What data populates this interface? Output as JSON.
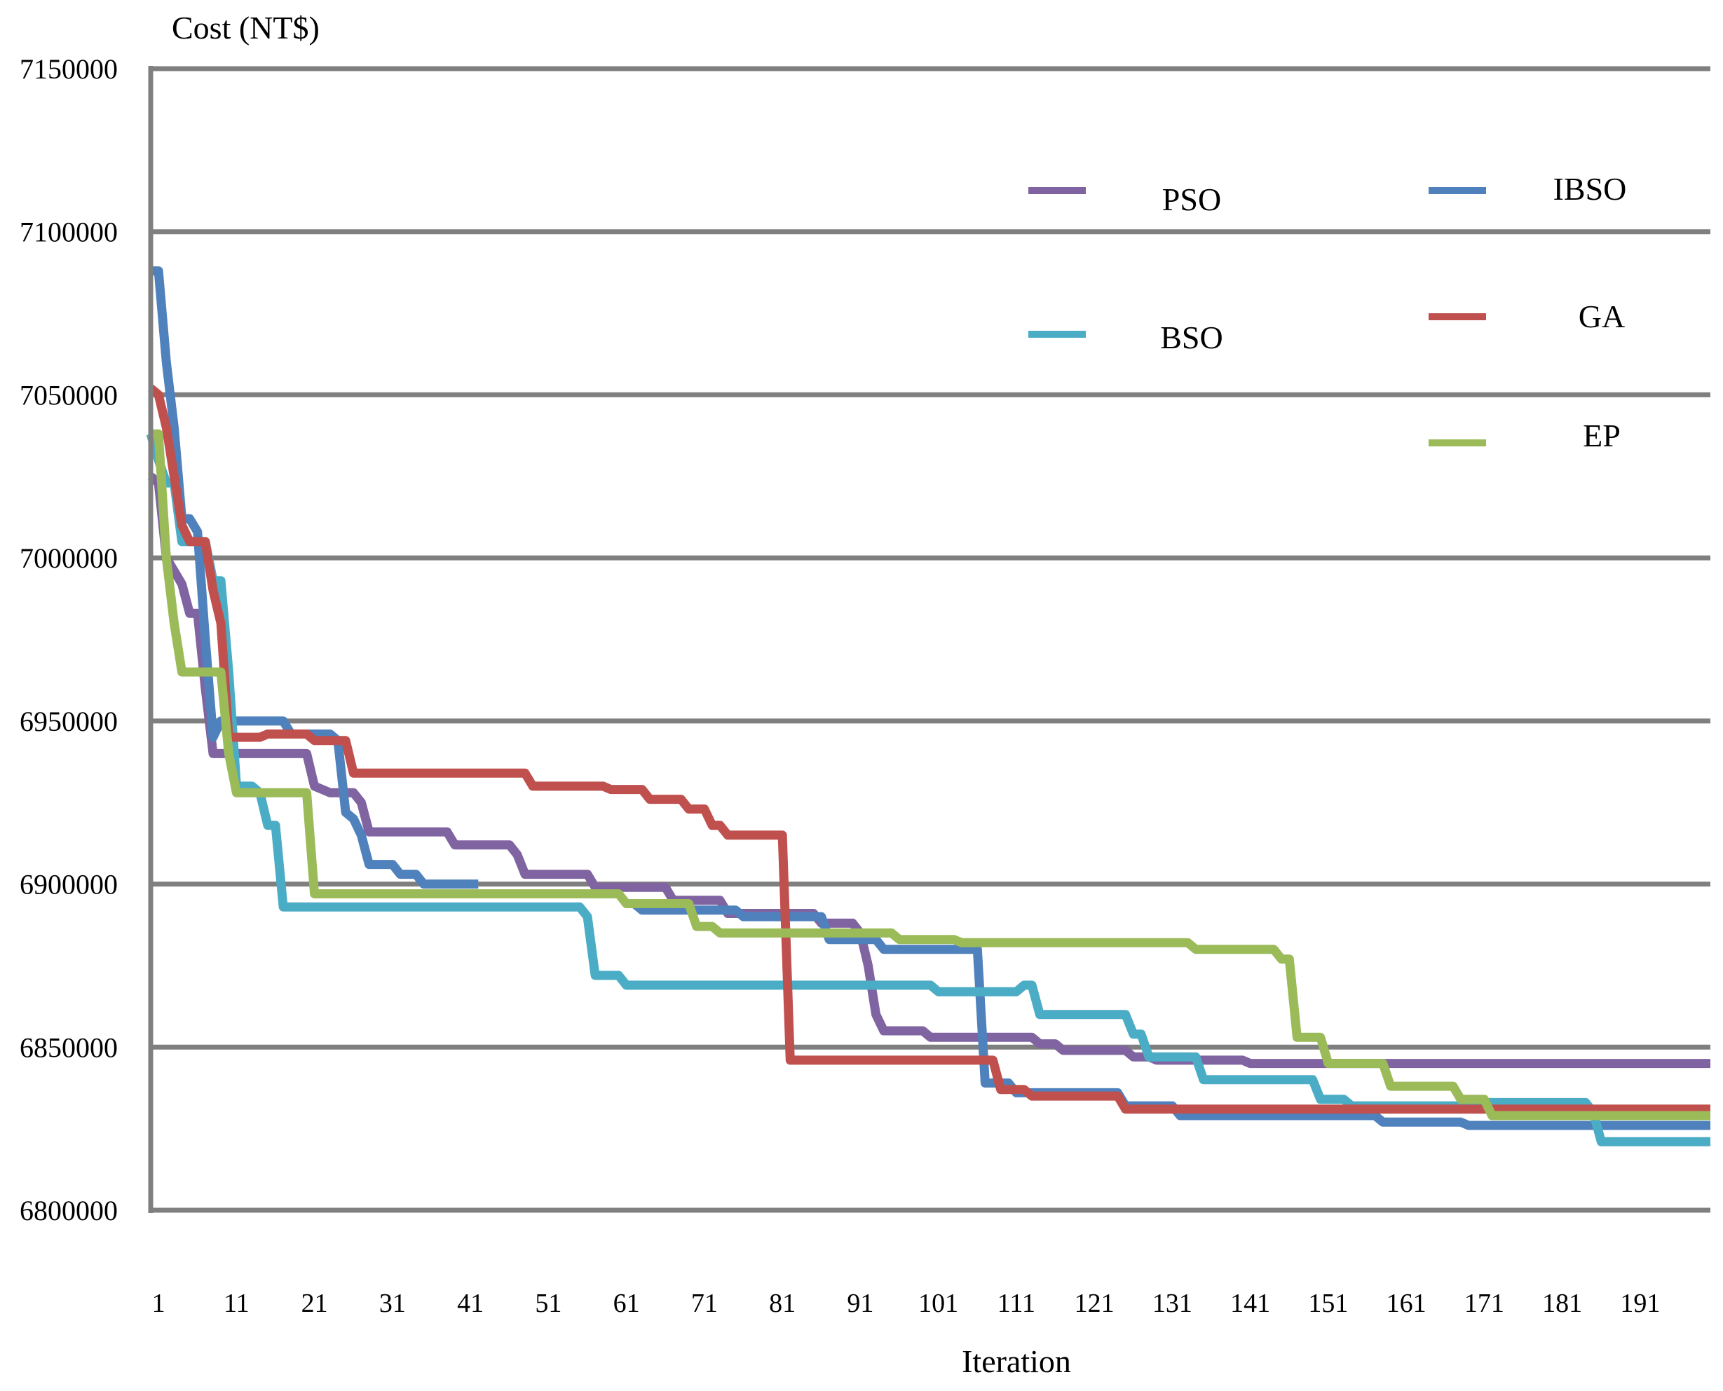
{
  "chart_data": {
    "type": "line",
    "title": "",
    "ylabel": "Cost (NT$)",
    "xlabel": "Iteration",
    "xlim": [
      0,
      200
    ],
    "ylim": [
      6800000,
      7150000
    ],
    "yticks": [
      {
        "value": 6800000,
        "label": "6800000"
      },
      {
        "value": 6850000,
        "label": "6850000"
      },
      {
        "value": 6900000,
        "label": "6900000"
      },
      {
        "value": 6950000,
        "label": "6950000"
      },
      {
        "value": 7000000,
        "label": "7000000"
      },
      {
        "value": 7050000,
        "label": "7050000"
      },
      {
        "value": 7100000,
        "label": "7100000"
      },
      {
        "value": 7150000,
        "label": "7150000"
      }
    ],
    "xticks": [
      {
        "value": 1,
        "label": "1"
      },
      {
        "value": 11,
        "label": "11"
      },
      {
        "value": 21,
        "label": "21"
      },
      {
        "value": 31,
        "label": "31"
      },
      {
        "value": 41,
        "label": "41"
      },
      {
        "value": 51,
        "label": "51"
      },
      {
        "value": 61,
        "label": "61"
      },
      {
        "value": 71,
        "label": "71"
      },
      {
        "value": 81,
        "label": "81"
      },
      {
        "value": 91,
        "label": "91"
      },
      {
        "value": 101,
        "label": "101"
      },
      {
        "value": 111,
        "label": "111"
      },
      {
        "value": 121,
        "label": "121"
      },
      {
        "value": 131,
        "label": "131"
      },
      {
        "value": 141,
        "label": "141"
      },
      {
        "value": 151,
        "label": "151"
      },
      {
        "value": 161,
        "label": "161"
      },
      {
        "value": 171,
        "label": "171"
      },
      {
        "value": 181,
        "label": "181"
      },
      {
        "value": 191,
        "label": "191"
      }
    ],
    "grid": "horizontal",
    "legend_position": "top-right",
    "series": [
      {
        "name": "PSO",
        "color": "#8064A2",
        "points": [
          [
            0,
            7025000
          ],
          [
            1,
            7023000
          ],
          [
            2,
            7000000
          ],
          [
            4,
            6992000
          ],
          [
            5,
            6983000
          ],
          [
            6,
            6983000
          ],
          [
            7,
            6960000
          ],
          [
            8,
            6940000
          ],
          [
            20,
            6940000
          ],
          [
            21,
            6930000
          ],
          [
            23,
            6928000
          ],
          [
            26,
            6928000
          ],
          [
            27,
            6925000
          ],
          [
            28,
            6916000
          ],
          [
            38,
            6916000
          ],
          [
            39,
            6912000
          ],
          [
            46,
            6912000
          ],
          [
            47,
            6909000
          ],
          [
            48,
            6903000
          ],
          [
            56,
            6903000
          ],
          [
            57,
            6899000
          ],
          [
            66,
            6899000
          ],
          [
            67,
            6895000
          ],
          [
            73,
            6895000
          ],
          [
            74,
            6891000
          ],
          [
            85,
            6891000
          ],
          [
            86,
            6888000
          ],
          [
            90,
            6888000
          ],
          [
            91,
            6885000
          ],
          [
            92,
            6875000
          ],
          [
            93,
            6860000
          ],
          [
            94,
            6855000
          ],
          [
            99,
            6855000
          ],
          [
            100,
            6853000
          ],
          [
            113,
            6853000
          ],
          [
            114,
            6851000
          ],
          [
            116,
            6851000
          ],
          [
            117,
            6849000
          ],
          [
            125,
            6849000
          ],
          [
            126,
            6847000
          ],
          [
            128,
            6847000
          ],
          [
            129,
            6846000
          ],
          [
            140,
            6846000
          ],
          [
            141,
            6845000
          ],
          [
            200,
            6845000
          ]
        ]
      },
      {
        "name": "IBSO",
        "color": "#4F81BD",
        "points": [
          [
            0,
            7088000
          ],
          [
            1,
            7088000
          ],
          [
            2,
            7060000
          ],
          [
            3,
            7040000
          ],
          [
            4,
            7012000
          ],
          [
            5,
            7012000
          ],
          [
            6,
            7008000
          ],
          [
            7,
            6975000
          ],
          [
            8,
            6945000
          ],
          [
            9,
            6950000
          ],
          [
            17,
            6950000
          ],
          [
            18,
            6946000
          ],
          [
            23,
            6946000
          ],
          [
            24,
            6944000
          ],
          [
            25,
            6922000
          ],
          [
            26,
            6920000
          ],
          [
            27,
            6915000
          ],
          [
            28,
            6906000
          ],
          [
            31,
            6906000
          ],
          [
            32,
            6903000
          ],
          [
            34,
            6903000
          ],
          [
            35,
            6900000
          ],
          [
            42,
            6900000
          ]
        ]
      },
      {
        "name": "IBSO",
        "color": "#4F81BD",
        "points": [
          [
            62,
            6894000
          ],
          [
            63,
            6892000
          ],
          [
            75,
            6892000
          ],
          [
            76,
            6890000
          ],
          [
            86,
            6890000
          ],
          [
            87,
            6883000
          ],
          [
            93,
            6883000
          ],
          [
            94,
            6880000
          ],
          [
            106,
            6880000
          ],
          [
            107,
            6839000
          ],
          [
            110,
            6839000
          ],
          [
            111,
            6836000
          ],
          [
            124,
            6836000
          ],
          [
            125,
            6832000
          ],
          [
            131,
            6832000
          ],
          [
            132,
            6829000
          ],
          [
            157,
            6829000
          ],
          [
            158,
            6827000
          ],
          [
            168,
            6827000
          ],
          [
            169,
            6826000
          ],
          [
            200,
            6826000
          ]
        ]
      },
      {
        "name": "BSO",
        "color": "#4BACC6",
        "points": [
          [
            0,
            7038000
          ],
          [
            1,
            7030000
          ],
          [
            2,
            7023000
          ],
          [
            3,
            7023000
          ],
          [
            4,
            7005000
          ],
          [
            7,
            7005000
          ],
          [
            8,
            6993000
          ],
          [
            9,
            6993000
          ],
          [
            10,
            6965000
          ],
          [
            11,
            6930000
          ],
          [
            13,
            6930000
          ],
          [
            14,
            6928000
          ],
          [
            15,
            6918000
          ],
          [
            16,
            6918000
          ],
          [
            17,
            6893000
          ],
          [
            55,
            6893000
          ],
          [
            56,
            6890000
          ],
          [
            57,
            6872000
          ],
          [
            60,
            6872000
          ],
          [
            61,
            6869000
          ],
          [
            100,
            6869000
          ],
          [
            101,
            6867000
          ],
          [
            111,
            6867000
          ],
          [
            112,
            6869000
          ],
          [
            113,
            6869000
          ],
          [
            114,
            6860000
          ],
          [
            125,
            6860000
          ],
          [
            126,
            6854000
          ],
          [
            127,
            6854000
          ],
          [
            128,
            6847000
          ],
          [
            134,
            6847000
          ],
          [
            135,
            6840000
          ],
          [
            149,
            6840000
          ],
          [
            150,
            6834000
          ],
          [
            153,
            6834000
          ],
          [
            154,
            6832000
          ],
          [
            170,
            6832000
          ],
          [
            171,
            6833000
          ],
          [
            184,
            6833000
          ],
          [
            185,
            6830000
          ],
          [
            186,
            6821000
          ],
          [
            200,
            6821000
          ]
        ]
      },
      {
        "name": "GA",
        "color": "#C0504D",
        "points": [
          [
            0,
            7052000
          ],
          [
            1,
            7050000
          ],
          [
            2,
            7040000
          ],
          [
            3,
            7025000
          ],
          [
            4,
            7010000
          ],
          [
            5,
            7005000
          ],
          [
            7,
            7005000
          ],
          [
            8,
            6990000
          ],
          [
            9,
            6980000
          ],
          [
            10,
            6945000
          ],
          [
            14,
            6945000
          ],
          [
            15,
            6946000
          ],
          [
            20,
            6946000
          ],
          [
            21,
            6944000
          ],
          [
            25,
            6944000
          ],
          [
            26,
            6934000
          ],
          [
            48,
            6934000
          ],
          [
            49,
            6930000
          ],
          [
            58,
            6930000
          ],
          [
            59,
            6929000
          ],
          [
            63,
            6929000
          ],
          [
            64,
            6926000
          ],
          [
            68,
            6926000
          ],
          [
            69,
            6923000
          ],
          [
            71,
            6923000
          ],
          [
            72,
            6918000
          ],
          [
            73,
            6918000
          ],
          [
            74,
            6915000
          ],
          [
            81,
            6915000
          ],
          [
            82,
            6846000
          ],
          [
            108,
            6846000
          ],
          [
            109,
            6837000
          ],
          [
            112,
            6837000
          ],
          [
            113,
            6835000
          ],
          [
            124,
            6835000
          ],
          [
            125,
            6831000
          ],
          [
            200,
            6831000
          ]
        ]
      },
      {
        "name": "EP",
        "color": "#9BBB59",
        "points": [
          [
            0,
            7038000
          ],
          [
            1,
            7038000
          ],
          [
            2,
            7000000
          ],
          [
            3,
            6980000
          ],
          [
            4,
            6965000
          ],
          [
            8,
            6965000
          ],
          [
            9,
            6965000
          ],
          [
            10,
            6940000
          ],
          [
            11,
            6928000
          ],
          [
            20,
            6928000
          ],
          [
            21,
            6897000
          ],
          [
            60,
            6897000
          ],
          [
            61,
            6894000
          ],
          [
            69,
            6894000
          ],
          [
            70,
            6887000
          ],
          [
            72,
            6887000
          ],
          [
            73,
            6885000
          ],
          [
            95,
            6885000
          ],
          [
            96,
            6883000
          ],
          [
            103,
            6883000
          ],
          [
            104,
            6882000
          ],
          [
            133,
            6882000
          ],
          [
            134,
            6880000
          ],
          [
            144,
            6880000
          ],
          [
            145,
            6877000
          ],
          [
            146,
            6877000
          ],
          [
            147,
            6853000
          ],
          [
            150,
            6853000
          ],
          [
            151,
            6845000
          ],
          [
            158,
            6845000
          ],
          [
            159,
            6838000
          ],
          [
            167,
            6838000
          ],
          [
            168,
            6834000
          ],
          [
            171,
            6834000
          ],
          [
            172,
            6829000
          ],
          [
            200,
            6829000
          ]
        ]
      }
    ],
    "legend": [
      {
        "label": "PSO",
        "color": "#8064A2"
      },
      {
        "label": "IBSO",
        "color": "#4F81BD"
      },
      {
        "label": "BSO",
        "color": "#4BACC6"
      },
      {
        "label": "GA",
        "color": "#C0504D"
      },
      {
        "label": "EP",
        "color": "#9BBB59"
      }
    ]
  }
}
